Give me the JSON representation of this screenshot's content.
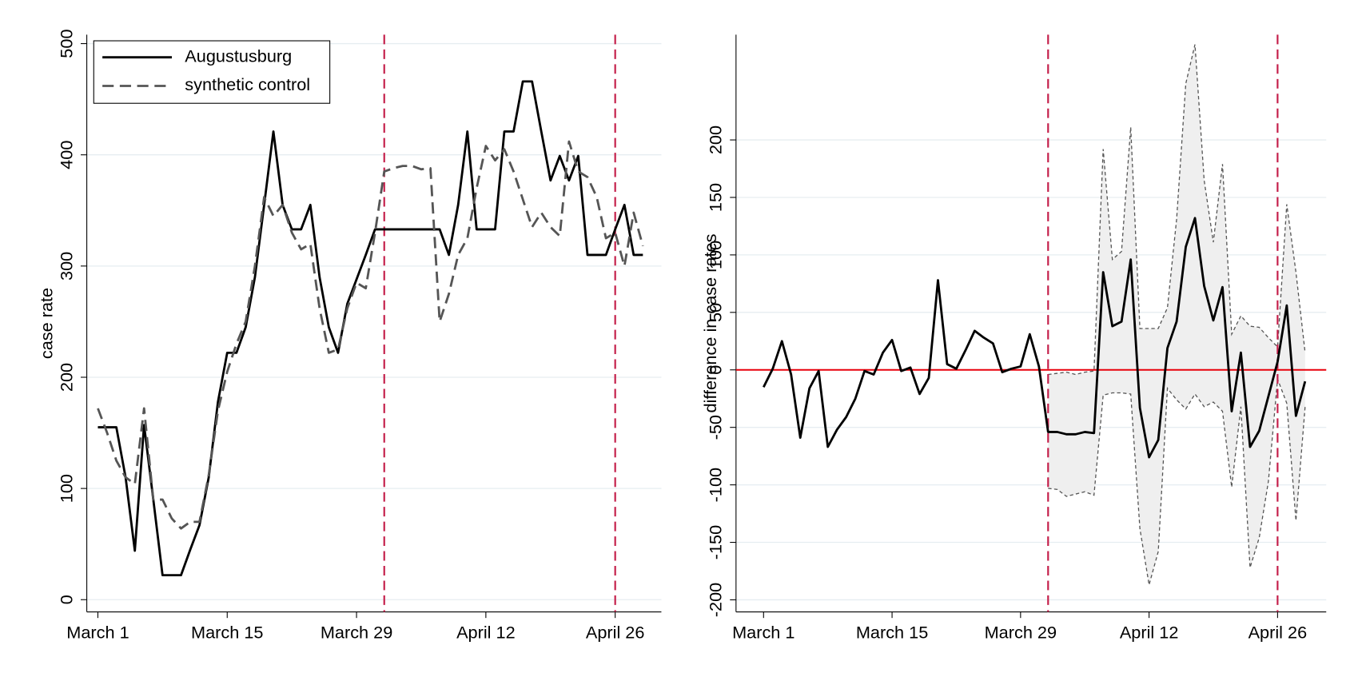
{
  "chart_data": [
    {
      "type": "line",
      "ylabel": "case rate",
      "x": [
        0,
        1,
        2,
        3,
        4,
        5,
        6,
        7,
        8,
        9,
        10,
        11,
        12,
        13,
        14,
        15,
        16,
        17,
        18,
        19,
        20,
        21,
        22,
        23,
        24,
        25,
        26,
        27,
        28,
        29,
        30,
        31,
        32,
        33,
        34,
        35,
        36,
        37,
        38,
        39,
        40,
        41,
        42,
        43,
        44,
        45,
        46,
        47,
        48,
        49,
        50,
        51,
        52,
        53,
        54,
        55,
        56,
        57,
        58,
        59
      ],
      "series": [
        {
          "name": "Augustusburg",
          "color": "#000000",
          "dashed": false,
          "values": [
            155,
            155,
            155,
            110,
            44,
            157,
            90,
            22,
            22,
            22,
            45,
            67,
            110,
            178,
            222,
            222,
            245,
            290,
            355,
            421,
            355,
            333,
            333,
            355,
            290,
            245,
            222,
            266,
            288,
            310,
            333,
            333,
            333,
            333,
            333,
            333,
            333,
            333,
            310,
            355,
            421,
            333,
            333,
            333,
            421,
            421,
            466,
            466,
            421,
            377,
            399,
            377,
            399,
            310,
            310,
            310,
            333,
            355,
            310,
            310
          ]
        },
        {
          "name": "synthetic control",
          "color": "#555555",
          "dashed": true,
          "values": [
            172,
            150,
            125,
            110,
            104,
            172,
            90,
            90,
            73,
            64,
            70,
            70,
            112,
            170,
            205,
            230,
            250,
            300,
            362,
            345,
            355,
            330,
            315,
            320,
            262,
            222,
            225,
            262,
            285,
            280,
            330,
            385,
            388,
            390,
            390,
            387,
            388,
            250,
            275,
            310,
            325,
            370,
            408,
            395,
            405,
            385,
            360,
            335,
            348,
            335,
            327,
            412,
            385,
            380,
            362,
            325,
            330,
            300,
            348,
            318
          ]
        }
      ],
      "xlim": [
        -1.2,
        61
      ],
      "xticks": [
        {
          "value": 0,
          "label": "March 1"
        },
        {
          "value": 14,
          "label": "March 15"
        },
        {
          "value": 28,
          "label": "March 29"
        },
        {
          "value": 42,
          "label": "April 12"
        },
        {
          "value": 56,
          "label": "April 26"
        }
      ],
      "ylim": [
        -11,
        508
      ],
      "yticks": [
        0,
        100,
        200,
        300,
        400,
        500
      ],
      "grid": true,
      "vlines": [
        31,
        56
      ],
      "vline_color": "#c41e4a",
      "legend": "top-left"
    },
    {
      "type": "line",
      "ylabel": "difference in case rates",
      "x": [
        0,
        1,
        2,
        3,
        4,
        5,
        6,
        7,
        8,
        9,
        10,
        11,
        12,
        13,
        14,
        15,
        16,
        17,
        18,
        19,
        20,
        21,
        22,
        23,
        24,
        25,
        26,
        27,
        28,
        29,
        30,
        31,
        32,
        33,
        34,
        35,
        36,
        37,
        38,
        39,
        40,
        41,
        42,
        43,
        44,
        45,
        46,
        47,
        48,
        49,
        50,
        51,
        52,
        53,
        54,
        55,
        56,
        57,
        58,
        59
      ],
      "series": [
        {
          "color": "#000000",
          "dashed": false,
          "values": [
            -15,
            1,
            25,
            -4,
            -59,
            -16,
            -1,
            -67,
            -52,
            -41,
            -25,
            -1,
            -4,
            15,
            26,
            -1,
            2,
            -21,
            -7,
            78,
            5,
            1,
            17,
            34,
            28,
            23,
            -2,
            1,
            3,
            31,
            3,
            -54,
            -54,
            -56,
            -56,
            -54,
            -55,
            85,
            38,
            42,
            96,
            -33,
            -76,
            -61,
            19,
            42,
            107,
            132,
            73,
            43,
            72,
            -36,
            15,
            -67,
            -53,
            -23,
            7,
            56,
            -40,
            -10
          ]
        }
      ],
      "band": {
        "color": "#efefef",
        "line_color": "#555555",
        "upper": [
          null,
          null,
          null,
          null,
          null,
          null,
          null,
          null,
          null,
          null,
          null,
          null,
          null,
          null,
          null,
          null,
          null,
          null,
          null,
          null,
          null,
          null,
          null,
          null,
          null,
          null,
          null,
          null,
          null,
          null,
          null,
          -4,
          -3,
          -2,
          -4,
          -2,
          -1,
          192,
          96,
          103,
          211,
          36,
          36,
          36,
          54,
          131,
          249,
          283,
          165,
          111,
          179,
          31,
          47,
          38,
          37,
          28,
          20,
          144,
          85,
          15
        ],
        "lower": [
          null,
          null,
          null,
          null,
          null,
          null,
          null,
          null,
          null,
          null,
          null,
          null,
          null,
          null,
          null,
          null,
          null,
          null,
          null,
          null,
          null,
          null,
          null,
          null,
          null,
          null,
          null,
          null,
          null,
          null,
          null,
          -103,
          -104,
          -110,
          -108,
          -106,
          -109,
          -22,
          -20,
          -20,
          -21,
          -138,
          -187,
          -158,
          -16,
          -26,
          -34,
          -21,
          -32,
          -28,
          -36,
          -102,
          -32,
          -172,
          -146,
          -97,
          -8,
          -29,
          -131,
          -32
        ]
      },
      "xlim": [
        -3,
        61.3
      ],
      "xticks": [
        {
          "value": 0,
          "label": "March 1"
        },
        {
          "value": 14,
          "label": "March 15"
        },
        {
          "value": 28,
          "label": "March 29"
        },
        {
          "value": 42,
          "label": "April 12"
        },
        {
          "value": 56,
          "label": "April 26"
        }
      ],
      "ylim": [
        -210.5,
        291.5
      ],
      "yticks": [
        -200,
        -150,
        -100,
        -50,
        0,
        50,
        100,
        150,
        200
      ],
      "grid": true,
      "vlines": [
        31,
        56
      ],
      "vline_color": "#c41e4a",
      "hline": 0,
      "hline_color": "#e8000b"
    }
  ]
}
